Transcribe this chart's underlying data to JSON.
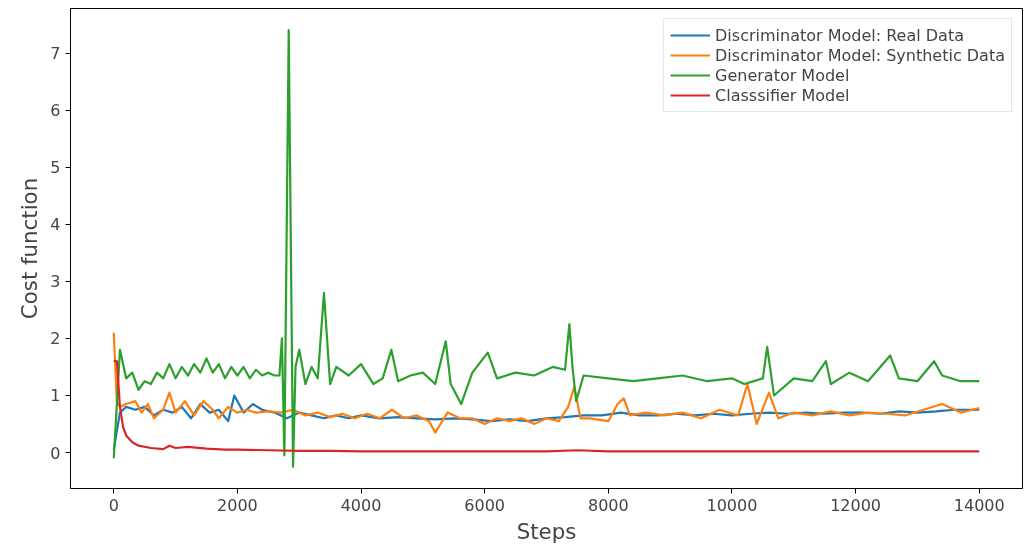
{
  "chart_data": {
    "type": "line",
    "xlabel": "Steps",
    "ylabel": "Cost function",
    "xlim": [
      -700,
      14700
    ],
    "ylim": [
      -0.63,
      7.78
    ],
    "xticks": [
      0,
      2000,
      4000,
      6000,
      8000,
      10000,
      12000,
      14000
    ],
    "yticks": [
      0,
      1,
      2,
      3,
      4,
      5,
      6,
      7
    ],
    "grid": false,
    "legend": "top right",
    "line_style": "solid",
    "marker": "none",
    "series": [
      {
        "name": "Discriminator Model: Real Data",
        "color": "#1f77b4",
        "x": [
          0,
          100,
          200,
          350,
          500,
          650,
          800,
          950,
          1100,
          1250,
          1400,
          1550,
          1700,
          1850,
          1950,
          2100,
          2250,
          2400,
          2600,
          2800,
          3000,
          3200,
          3400,
          3600,
          3800,
          4000,
          4300,
          4600,
          4900,
          5200,
          5500,
          5800,
          6100,
          6400,
          6700,
          7000,
          7300,
          7600,
          7900,
          8200,
          8500,
          8800,
          9100,
          9400,
          9700,
          10000,
          10300,
          10600,
          10900,
          11200,
          11500,
          11800,
          12100,
          12400,
          12700,
          13000,
          13300,
          13600,
          14000
        ],
        "values": [
          0.05,
          0.7,
          0.8,
          0.75,
          0.8,
          0.65,
          0.75,
          0.7,
          0.8,
          0.6,
          0.85,
          0.7,
          0.75,
          0.55,
          1.0,
          0.7,
          0.85,
          0.75,
          0.7,
          0.6,
          0.7,
          0.65,
          0.6,
          0.65,
          0.6,
          0.65,
          0.6,
          0.62,
          0.6,
          0.58,
          0.6,
          0.58,
          0.55,
          0.58,
          0.55,
          0.6,
          0.62,
          0.65,
          0.65,
          0.7,
          0.65,
          0.65,
          0.68,
          0.65,
          0.68,
          0.65,
          0.68,
          0.7,
          0.68,
          0.7,
          0.68,
          0.7,
          0.7,
          0.68,
          0.72,
          0.7,
          0.72,
          0.75,
          0.75
        ]
      },
      {
        "name": "Discriminator Model: Synthetic Data",
        "color": "#ff7f0e",
        "x": [
          0,
          50,
          100,
          200,
          350,
          450,
          550,
          650,
          800,
          900,
          1000,
          1150,
          1300,
          1450,
          1600,
          1700,
          1850,
          2000,
          2150,
          2300,
          2500,
          2700,
          2900,
          3100,
          3300,
          3500,
          3700,
          3900,
          4100,
          4300,
          4500,
          4700,
          4900,
          5100,
          5200,
          5400,
          5600,
          5800,
          6000,
          6200,
          6400,
          6600,
          6800,
          7000,
          7200,
          7350,
          7450,
          7550,
          7700,
          8000,
          8150,
          8250,
          8350,
          8600,
          8900,
          9200,
          9500,
          9800,
          10100,
          10250,
          10400,
          10600,
          10750,
          11000,
          11300,
          11600,
          11900,
          12200,
          12500,
          12800,
          13100,
          13400,
          13700,
          14000
        ],
        "values": [
          2.1,
          0.9,
          0.8,
          0.85,
          0.9,
          0.7,
          0.85,
          0.6,
          0.75,
          1.05,
          0.7,
          0.9,
          0.65,
          0.9,
          0.75,
          0.6,
          0.8,
          0.7,
          0.75,
          0.7,
          0.72,
          0.7,
          0.75,
          0.65,
          0.7,
          0.62,
          0.68,
          0.6,
          0.68,
          0.6,
          0.75,
          0.6,
          0.65,
          0.55,
          0.35,
          0.7,
          0.6,
          0.6,
          0.5,
          0.6,
          0.55,
          0.6,
          0.5,
          0.6,
          0.55,
          0.8,
          1.15,
          0.6,
          0.6,
          0.55,
          0.85,
          0.95,
          0.65,
          0.7,
          0.65,
          0.7,
          0.6,
          0.75,
          0.65,
          1.2,
          0.5,
          1.05,
          0.6,
          0.7,
          0.65,
          0.72,
          0.65,
          0.7,
          0.68,
          0.65,
          0.75,
          0.85,
          0.7,
          0.78
        ]
      },
      {
        "name": "Generator Model",
        "color": "#2ca02c",
        "x": [
          0,
          100,
          200,
          300,
          400,
          500,
          600,
          700,
          800,
          900,
          1000,
          1100,
          1200,
          1300,
          1400,
          1500,
          1600,
          1700,
          1800,
          1900,
          2000,
          2100,
          2200,
          2300,
          2400,
          2500,
          2600,
          2680,
          2720,
          2760,
          2830,
          2900,
          2940,
          3000,
          3100,
          3200,
          3300,
          3400,
          3500,
          3600,
          3800,
          4000,
          4200,
          4350,
          4490,
          4600,
          4800,
          5000,
          5200,
          5370,
          5450,
          5620,
          5800,
          6050,
          6200,
          6500,
          6800,
          7100,
          7300,
          7370,
          7420,
          7480,
          7600,
          8000,
          8400,
          8800,
          9200,
          9600,
          10000,
          10200,
          10500,
          10570,
          10680,
          11000,
          11300,
          11520,
          11600,
          11900,
          12200,
          12560,
          12700,
          13000,
          13270,
          13400,
          13700,
          14000
        ],
        "values": [
          -0.1,
          1.8,
          1.3,
          1.4,
          1.1,
          1.25,
          1.2,
          1.4,
          1.3,
          1.55,
          1.3,
          1.5,
          1.35,
          1.55,
          1.4,
          1.65,
          1.4,
          1.55,
          1.3,
          1.5,
          1.35,
          1.5,
          1.3,
          1.45,
          1.35,
          1.4,
          1.35,
          1.35,
          2.0,
          -0.05,
          7.4,
          -0.25,
          1.5,
          1.8,
          1.2,
          1.5,
          1.3,
          2.8,
          1.2,
          1.5,
          1.35,
          1.55,
          1.2,
          1.3,
          1.8,
          1.25,
          1.35,
          1.4,
          1.2,
          1.95,
          1.2,
          0.85,
          1.4,
          1.75,
          1.3,
          1.4,
          1.35,
          1.5,
          1.45,
          2.25,
          1.5,
          0.9,
          1.35,
          1.3,
          1.25,
          1.3,
          1.35,
          1.25,
          1.3,
          1.2,
          1.3,
          1.85,
          1.0,
          1.3,
          1.25,
          1.6,
          1.2,
          1.4,
          1.25,
          1.7,
          1.3,
          1.25,
          1.6,
          1.35,
          1.25,
          1.25
        ]
      },
      {
        "name": "Classsifier Model",
        "color": "#d62728",
        "x": [
          0,
          50,
          100,
          150,
          200,
          300,
          400,
          600,
          800,
          900,
          1000,
          1200,
          1500,
          1800,
          2000,
          2500,
          3000,
          3500,
          4000,
          5000,
          6000,
          7000,
          7500,
          8000,
          9000,
          10000,
          11000,
          12000,
          13000,
          14000
        ],
        "values": [
          1.6,
          1.6,
          0.8,
          0.45,
          0.3,
          0.18,
          0.12,
          0.08,
          0.06,
          0.12,
          0.08,
          0.1,
          0.07,
          0.05,
          0.05,
          0.04,
          0.03,
          0.03,
          0.02,
          0.02,
          0.02,
          0.02,
          0.04,
          0.02,
          0.02,
          0.02,
          0.02,
          0.02,
          0.02,
          0.02
        ]
      }
    ]
  }
}
